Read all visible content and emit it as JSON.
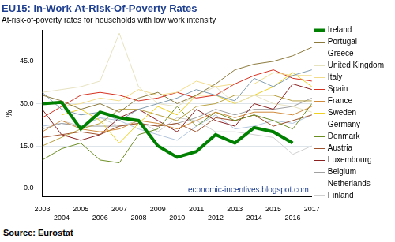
{
  "chart_data": {
    "type": "line",
    "title": "EU15: In-Work At-Risk-Of-Poverty Rates",
    "subtitle": "At-risk-of-poverty rates for households with low work intensity",
    "y_label": "%",
    "annotation": "economic-incentives.blogspot.com",
    "source": "Source: Eurostat",
    "x": [
      2003,
      2004,
      2005,
      2006,
      2007,
      2008,
      2009,
      2010,
      2011,
      2012,
      2013,
      2014,
      2015,
      2016,
      2017
    ],
    "xlim": [
      2003,
      2017
    ],
    "xticks": [
      2003,
      2004,
      2005,
      2006,
      2007,
      2008,
      2009,
      2010,
      2011,
      2012,
      2013,
      2014,
      2015,
      2016,
      2017
    ],
    "ylim": [
      -3,
      56
    ],
    "yticks": [
      {
        "value": 0,
        "label": "0.0"
      },
      {
        "value": 15,
        "label": "15.0"
      },
      {
        "value": 30,
        "label": "30.0"
      },
      {
        "value": 45,
        "label": "45.0"
      }
    ],
    "grid": true,
    "legend": "right",
    "series": [
      {
        "name": "Portugal",
        "color": "#8c7a3c",
        "values": [
          33,
          31,
          28,
          30,
          27,
          32,
          34,
          30,
          33,
          37,
          42,
          44,
          45,
          47,
          50
        ]
      },
      {
        "name": "Greece",
        "color": "#7f9cb0",
        "values": [
          34,
          28,
          26,
          27,
          24,
          28,
          30,
          32,
          35,
          33,
          31,
          39,
          36,
          40,
          42
        ]
      },
      {
        "name": "United Kingdom",
        "color": "#e6e2c0",
        "values": [
          34,
          35,
          36,
          38,
          55,
          36,
          30,
          29,
          33,
          36,
          30,
          33,
          30,
          29,
          27
        ]
      },
      {
        "name": "Italy",
        "color": "#f2dc8a",
        "values": [
          null,
          29,
          30,
          32,
          31,
          35,
          33,
          34,
          38,
          36,
          37,
          37,
          41,
          40,
          40
        ]
      },
      {
        "name": "Spain",
        "color": "#d7301f",
        "values": [
          25,
          29,
          33,
          34,
          33,
          31,
          32,
          34,
          32,
          33,
          37,
          40,
          42,
          39,
          38
        ]
      },
      {
        "name": "France",
        "color": "#d08a3a",
        "values": [
          20,
          24,
          21,
          20,
          21,
          24,
          23,
          21,
          24,
          27,
          25,
          27,
          27,
          26,
          29
        ]
      },
      {
        "name": "Sweden",
        "color": "#f0d020",
        "values": [
          null,
          26,
          28,
          24,
          16,
          23,
          29,
          26,
          33,
          33,
          30,
          33,
          36,
          41,
          36
        ]
      },
      {
        "name": "Germany",
        "color": "#b8a040",
        "values": [
          15,
          18,
          21,
          23,
          28,
          28,
          26,
          24,
          29,
          30,
          33,
          33,
          33,
          31,
          31
        ]
      },
      {
        "name": "Denmark",
        "color": "#6b8e23",
        "values": [
          10,
          14,
          16,
          10,
          9,
          19,
          21,
          29,
          22,
          27,
          24,
          26,
          24,
          21,
          30
        ]
      },
      {
        "name": "Austria",
        "color": "#a0522d",
        "values": [
          18,
          19,
          20,
          19,
          22,
          23,
          22,
          23,
          20,
          25,
          24,
          26,
          22,
          24,
          26
        ]
      },
      {
        "name": "Luxembourg",
        "color": "#8b2020",
        "values": [
          28,
          19,
          17,
          19,
          25,
          28,
          24,
          20,
          28,
          24,
          22,
          30,
          28,
          37,
          35
        ]
      },
      {
        "name": "Belgium",
        "color": "#a0a0a0",
        "values": [
          21,
          23,
          22,
          22,
          22,
          23,
          22,
          23,
          25,
          28,
          26,
          28,
          28,
          29,
          32
        ]
      },
      {
        "name": "Netherlands",
        "color": "#b0c4de",
        "values": [
          22,
          23,
          22,
          25,
          24,
          21,
          19,
          17,
          22,
          26,
          21,
          22,
          24,
          23,
          26
        ]
      },
      {
        "name": "Ireland",
        "color": "#008000",
        "line_style": "thick",
        "values": [
          30,
          30.5,
          21,
          27,
          25,
          24,
          15,
          11,
          13,
          19,
          16,
          21.5,
          20,
          16,
          null
        ]
      },
      {
        "name": "Finland",
        "color": "#d0d0d0",
        "values": [
          null,
          24,
          22,
          25,
          22,
          24,
          20,
          25,
          24,
          20,
          20,
          19,
          18,
          12,
          15
        ]
      }
    ]
  }
}
